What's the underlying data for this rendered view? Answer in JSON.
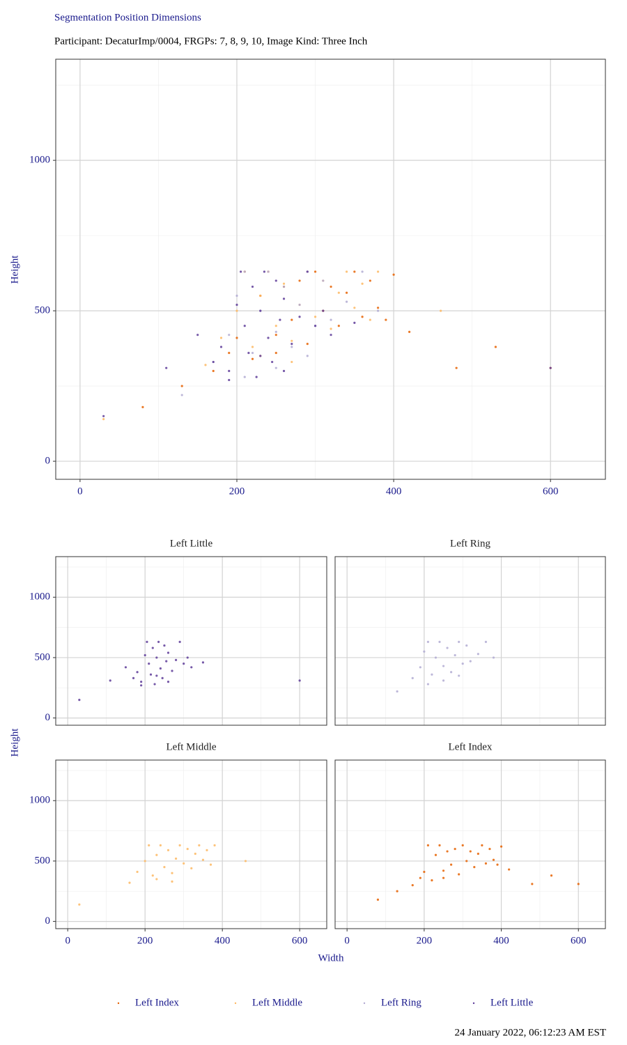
{
  "chart_data": [
    {
      "type": "scatter",
      "title": "Segmentation Position Dimensions",
      "subtitle": "Participant: DecaturImp/0004, FRGPs: 7, 8, 9, 10, Image Kind: Three Inch",
      "ylabel": "Height",
      "xlim": [
        -31,
        670
      ],
      "ylim": [
        -60,
        1336
      ],
      "xticks": [
        0,
        200,
        400,
        600
      ],
      "yticks": [
        0,
        500,
        1000
      ],
      "grid": true,
      "legend": "bottom",
      "series": [
        {
          "name": "Left Index",
          "color": "#e66101",
          "x": [
            80,
            130,
            170,
            190,
            200,
            210,
            220,
            230,
            240,
            250,
            260,
            270,
            280,
            290,
            300,
            310,
            320,
            330,
            340,
            350,
            360,
            370,
            380,
            390,
            400,
            420,
            480,
            530,
            600,
            250
          ],
          "y": [
            180,
            250,
            300,
            360,
            410,
            630,
            340,
            550,
            630,
            420,
            580,
            470,
            600,
            390,
            630,
            500,
            580,
            450,
            560,
            630,
            480,
            600,
            510,
            470,
            620,
            430,
            310,
            380,
            310,
            360
          ]
        },
        {
          "name": "Left Middle",
          "color": "#fdb863",
          "x": [
            30,
            160,
            180,
            200,
            210,
            220,
            230,
            240,
            250,
            260,
            270,
            280,
            290,
            300,
            310,
            320,
            330,
            340,
            350,
            360,
            370,
            380,
            460,
            230,
            270
          ],
          "y": [
            140,
            320,
            410,
            500,
            630,
            380,
            550,
            630,
            450,
            590,
            400,
            520,
            630,
            480,
            600,
            440,
            560,
            630,
            510,
            590,
            470,
            630,
            500,
            350,
            330
          ]
        },
        {
          "name": "Left Ring",
          "color": "#b2abd2",
          "x": [
            130,
            170,
            190,
            200,
            210,
            220,
            230,
            240,
            250,
            260,
            270,
            280,
            290,
            300,
            310,
            320,
            340,
            360,
            380,
            210,
            250,
            290
          ],
          "y": [
            220,
            330,
            420,
            550,
            630,
            360,
            500,
            630,
            430,
            580,
            380,
            520,
            630,
            450,
            600,
            470,
            530,
            630,
            500,
            280,
            310,
            350
          ]
        },
        {
          "name": "Left Little",
          "color": "#5e3c99",
          "x": [
            30,
            110,
            150,
            170,
            180,
            190,
            200,
            205,
            210,
            215,
            220,
            225,
            230,
            235,
            240,
            245,
            250,
            255,
            260,
            270,
            280,
            290,
            300,
            310,
            320,
            350,
            600,
            190,
            230,
            260
          ],
          "y": [
            150,
            310,
            420,
            330,
            380,
            300,
            520,
            630,
            450,
            360,
            580,
            280,
            500,
            630,
            410,
            330,
            600,
            470,
            540,
            390,
            480,
            630,
            450,
            500,
            420,
            460,
            310,
            270,
            350,
            300
          ]
        }
      ]
    },
    {
      "type": "facet",
      "xlabel": "Width",
      "ylabel": "Height",
      "xlim": [
        -31,
        670
      ],
      "ylim": [
        -60,
        1336
      ],
      "xticks": [
        0,
        200,
        400,
        600
      ],
      "yticks": [
        0,
        500,
        1000
      ],
      "grid": true,
      "panels": [
        "Left Little",
        "Left Ring",
        "Left Middle",
        "Left Index"
      ]
    },
    {
      "type": "footer",
      "text": "24 January 2022, 06:12:23 AM EST"
    }
  ]
}
